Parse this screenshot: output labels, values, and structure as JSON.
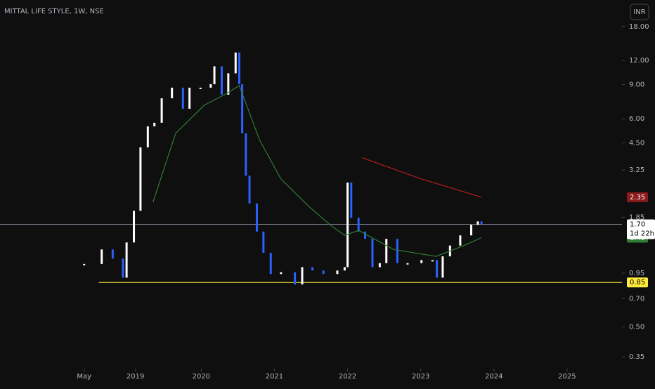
{
  "chart_data": {
    "type": "candle",
    "title": "MITTAL LIFE STYLE, 1W, NSE",
    "currency": "INR",
    "log_scale": true,
    "xlim": [
      2017.25,
      2025.75
    ],
    "ylim": [
      0.304,
      24.7
    ],
    "xticks": [
      {
        "value": 2018.4,
        "label": "May"
      },
      {
        "value": 2019.1,
        "label": "2019"
      },
      {
        "value": 2020.0,
        "label": "2020"
      },
      {
        "value": 2021.0,
        "label": "2021"
      },
      {
        "value": 2022.0,
        "label": "2022"
      },
      {
        "value": 2023.0,
        "label": "2023"
      },
      {
        "value": 2024.0,
        "label": "2024"
      },
      {
        "value": 2025.0,
        "label": "2025"
      }
    ],
    "yticks": [
      {
        "value": 18,
        "label": "18.00"
      },
      {
        "value": 12,
        "label": "12.00"
      },
      {
        "value": 9,
        "label": "9.00"
      },
      {
        "value": 6,
        "label": "6.00"
      },
      {
        "value": 4.5,
        "label": "4.50"
      },
      {
        "value": 3.25,
        "label": "3.25"
      },
      {
        "value": 1.85,
        "label": "1.85"
      },
      {
        "value": 0.95,
        "label": "0.95"
      },
      {
        "value": 0.7,
        "label": "0.70"
      },
      {
        "value": 0.5,
        "label": "0.50"
      },
      {
        "value": 0.35,
        "label": "0.35"
      }
    ],
    "series": [
      {
        "name": "Price",
        "up_color": "#ffffff",
        "down_color": "#2962ff",
        "x": [
          2018.4,
          2018.64,
          2018.79,
          2018.93,
          2018.98,
          2019.08,
          2019.17,
          2019.27,
          2019.36,
          2019.46,
          2019.6,
          2019.75,
          2019.84,
          2019.99,
          2020.13,
          2020.18,
          2020.28,
          2020.37,
          2020.47,
          2020.52,
          2020.56,
          2020.61,
          2020.66,
          2020.76,
          2020.85,
          2020.95,
          2021.09,
          2021.28,
          2021.38,
          2021.52,
          2021.67,
          2021.86,
          2021.96,
          2022.0,
          2022.05,
          2022.15,
          2022.24,
          2022.34,
          2022.44,
          2022.53,
          2022.68,
          2022.82,
          2023.01,
          2023.16,
          2023.22,
          2023.3,
          2023.4,
          2023.54,
          2023.69,
          2023.78,
          2023.83
        ],
        "values": [
          1.06,
          1.26,
          1.13,
          0.9,
          1.37,
          2.0,
          4.26,
          5.47,
          5.71,
          7.65,
          8.68,
          6.75,
          8.68,
          8.68,
          9.05,
          11.2,
          7.98,
          10.3,
          13.2,
          9.05,
          5.03,
          3.04,
          2.18,
          1.56,
          1.21,
          0.94,
          0.96,
          0.83,
          1.02,
          0.98,
          0.94,
          0.98,
          1.02,
          2.8,
          1.84,
          1.56,
          1.43,
          1.02,
          1.07,
          1.43,
          1.07,
          1.07,
          1.11,
          1.11,
          0.9,
          1.16,
          1.32,
          1.49,
          1.69,
          1.76,
          1.7
        ]
      },
      {
        "name": "MA 50",
        "color": "#2e7d32",
        "x": [
          2019.34,
          2019.65,
          2020.04,
          2020.32,
          2020.52,
          2020.8,
          2021.09,
          2021.48,
          2021.76,
          2021.96,
          2022.15,
          2022.63,
          2023.21,
          2023.59,
          2023.83
        ],
        "values": [
          2.21,
          5.03,
          7.04,
          7.98,
          8.9,
          4.63,
          2.92,
          2.09,
          1.69,
          1.49,
          1.58,
          1.26,
          1.16,
          1.32,
          1.45
        ]
      },
      {
        "name": "MA 200",
        "color": "#b71c1c",
        "x": [
          2022.2,
          2023.01,
          2023.83
        ],
        "values": [
          3.76,
          2.92,
          2.35
        ]
      }
    ],
    "hline": {
      "value": 0.85,
      "label": "0.85",
      "color": "#ffeb3b",
      "from": 2018.6
    },
    "price_line": {
      "value": 1.7,
      "label": "1.70",
      "countdown": "1d 22h",
      "color": "#787b86"
    },
    "badges": [
      {
        "value": 2.35,
        "label": "2.35",
        "color": "#8b1a1a"
      },
      {
        "value": 1.45,
        "label": "1.45",
        "color": "#2e7d32"
      }
    ]
  }
}
